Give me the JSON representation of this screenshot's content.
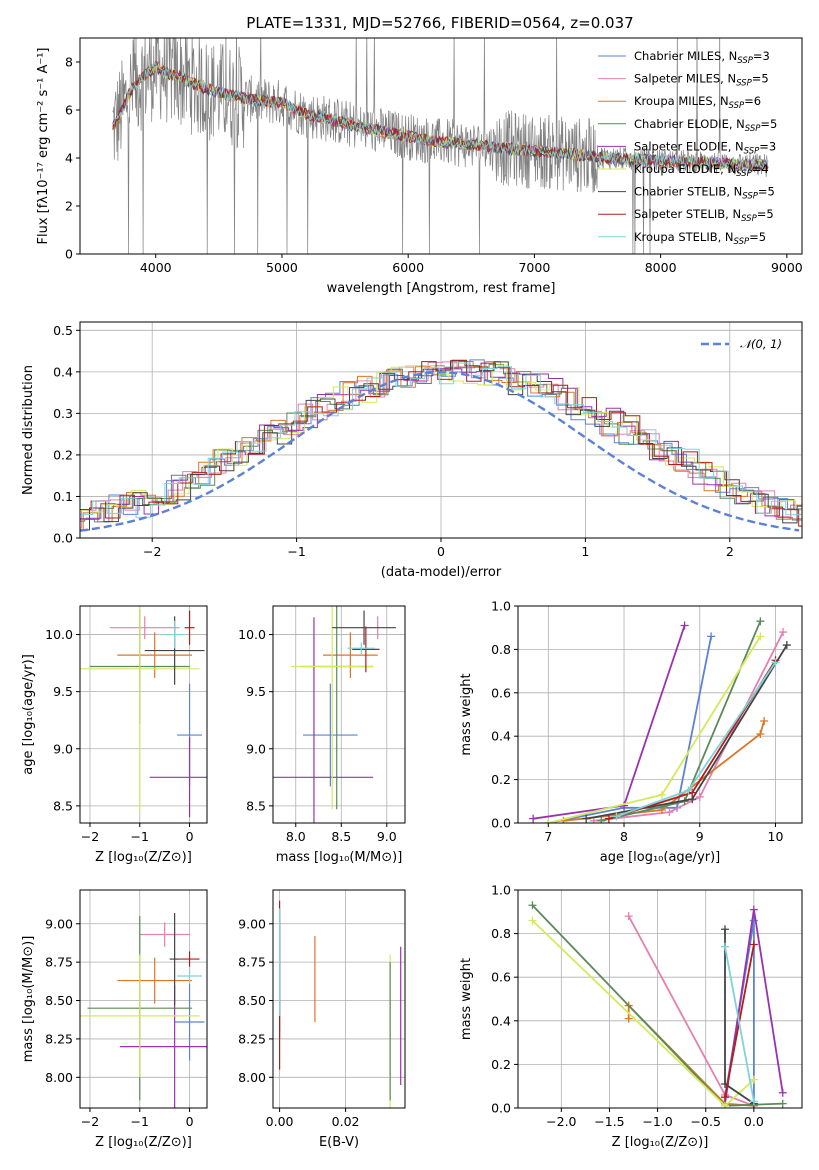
{
  "title": "PLATE=1331, MJD=52766, FIBERID=0564, z=0.037",
  "colors": [
    "#5b82d6",
    "#e57fb0",
    "#d9762a",
    "#5a8a5a",
    "#9a32b0",
    "#d4ea5a",
    "#444444",
    "#b01e1e",
    "#7ed3d8"
  ],
  "chart_data": [
    {
      "id": "spectrum",
      "type": "line",
      "xlabel": "wavelength [Angstrom, rest frame]",
      "ylabel": "Flux [fλ10⁻¹⁷ erg cm⁻² s⁻¹ A⁻¹]",
      "xlim": [
        3400,
        9120
      ],
      "ylim": [
        0,
        9
      ],
      "xticks": [
        4000,
        5000,
        6000,
        7000,
        8000,
        9000
      ],
      "yticks": [
        0,
        2,
        4,
        6,
        8
      ],
      "grid": false,
      "legend_position": "top-right",
      "observed_color": "#808080",
      "series": [
        {
          "name": "Chabrier MILES, N",
          "sub": "SSP",
          "suffix": "=3"
        },
        {
          "name": "Salpeter MILES, N",
          "sub": "SSP",
          "suffix": "=5"
        },
        {
          "name": "Kroupa MILES, N",
          "sub": "SSP",
          "suffix": "=6"
        },
        {
          "name": "Chabrier ELODIE, N",
          "sub": "SSP",
          "suffix": "=5"
        },
        {
          "name": "Salpeter ELODIE, N",
          "sub": "SSP",
          "suffix": "=3"
        },
        {
          "name": "Kroupa ELODIE, N",
          "sub": "SSP",
          "suffix": "=4"
        },
        {
          "name": "Chabrier STELIB, N",
          "sub": "SSP",
          "suffix": "=5"
        },
        {
          "name": "Salpeter STELIB, N",
          "sub": "SSP",
          "suffix": "=5"
        },
        {
          "name": "Kroupa STELIB, N",
          "sub": "SSP",
          "suffix": "=5"
        }
      ],
      "model_continuum": {
        "x": [
          3650,
          3700,
          3800,
          3900,
          4000,
          4100,
          4200,
          4300,
          4400,
          4600,
          4800,
          5000,
          5200,
          5400,
          5600,
          5800,
          6000,
          6200,
          6400,
          6600,
          6800,
          7000,
          7200,
          7400,
          7600,
          7800,
          8000,
          8200,
          8400,
          8600,
          8800
        ],
        "y": [
          5.2,
          5.6,
          6.8,
          7.4,
          7.8,
          7.5,
          7.4,
          7.1,
          6.9,
          6.6,
          6.4,
          6.3,
          5.8,
          5.6,
          5.3,
          5.1,
          4.9,
          4.7,
          4.6,
          4.5,
          4.4,
          4.3,
          4.2,
          4.1,
          4.0,
          3.95,
          3.9,
          3.85,
          3.8,
          3.75,
          3.7
        ]
      }
    },
    {
      "id": "residual_hist",
      "type": "line",
      "xlabel": "(data-model)/error",
      "ylabel": "Normed distribution",
      "xlim": [
        -2.5,
        2.5
      ],
      "ylim": [
        0,
        0.52
      ],
      "xticks": [
        -2,
        -1,
        0,
        1,
        2
      ],
      "xtick_labels": [
        "−2",
        "−1",
        "0",
        "1",
        "2"
      ],
      "yticks": [
        0.0,
        0.1,
        0.2,
        0.3,
        0.4,
        0.5
      ],
      "ytick_labels": [
        "0.0",
        "0.1",
        "0.2",
        "0.3",
        "0.4",
        "0.5"
      ],
      "grid": true,
      "legend_position": "top-right",
      "legend": "𝒩(0, 1)",
      "gaussian_color": "#5b82d6",
      "bin_width": 0.1,
      "hist_profile": [
        0.02,
        0.025,
        0.03,
        0.04,
        0.045,
        0.055,
        0.06,
        0.07,
        0.08,
        0.09,
        0.105,
        0.12,
        0.14,
        0.16,
        0.18,
        0.2,
        0.22,
        0.24,
        0.26,
        0.28,
        0.3,
        0.315,
        0.33,
        0.345,
        0.36,
        0.37,
        0.38,
        0.39,
        0.4,
        0.405,
        0.41,
        0.405,
        0.4,
        0.39,
        0.38,
        0.37,
        0.36,
        0.35,
        0.33,
        0.315,
        0.3,
        0.28,
        0.26,
        0.24,
        0.22,
        0.2,
        0.18,
        0.16,
        0.14,
        0.12,
        0.105,
        0.09,
        0.08,
        0.07,
        0.06,
        0.05,
        0.045,
        0.04,
        0.035,
        0.03
      ]
    },
    {
      "id": "age_vs_Z",
      "type": "scatter",
      "xlabel": "Z [log₁₀(Z/Z⊙)]",
      "ylabel": "age  [log₁₀(age/yr)]",
      "xlim": [
        -2.2,
        0.35
      ],
      "ylim": [
        8.35,
        10.25
      ],
      "xticks": [
        -2,
        -1,
        0
      ],
      "xtick_labels": [
        "−2",
        "−1",
        "0"
      ],
      "yticks": [
        8.5,
        9.0,
        9.5,
        10.0
      ],
      "ytick_labels": [
        "8.5",
        "9.0",
        "9.5",
        "10.0"
      ],
      "grid": true,
      "errorbars": [
        {
          "x": 0.0,
          "xerr": 0.25,
          "y": 9.12,
          "yerr": 0.45,
          "c": 0
        },
        {
          "x": -0.9,
          "xerr": 0.7,
          "y": 10.06,
          "yerr": 0.1,
          "c": 1
        },
        {
          "x": -0.7,
          "xerr": 0.75,
          "y": 9.82,
          "yerr": 0.2,
          "c": 2
        },
        {
          "x": -1.0,
          "xerr": 1.0,
          "y": 9.72,
          "yerr": 0.5,
          "c": 3
        },
        {
          "x": 0.0,
          "xerr": 0.8,
          "y": 8.75,
          "yerr": 0.35,
          "c": 4
        },
        {
          "x": -1.0,
          "xerr": 1.2,
          "y": 9.7,
          "yerr": 1.25,
          "c": 5
        },
        {
          "x": -0.3,
          "xerr": 0.6,
          "y": 9.86,
          "yerr": 0.3,
          "c": 6
        },
        {
          "x": 0.0,
          "xerr": 0.1,
          "y": 10.06,
          "yerr": 0.15,
          "c": 7
        },
        {
          "x": -0.3,
          "xerr": 0.2,
          "y": 10.0,
          "yerr": 0.12,
          "c": 8
        }
      ]
    },
    {
      "id": "age_vs_mass",
      "type": "scatter",
      "xlabel": "mass [log₁₀(M/M⊙)]",
      "xlim": [
        7.75,
        9.2
      ],
      "ylim": [
        8.35,
        10.25
      ],
      "xticks": [
        8.0,
        8.5,
        9.0
      ],
      "xtick_labels": [
        "8.0",
        "8.5",
        "9.0"
      ],
      "yticks": [
        8.5,
        9.0,
        9.5,
        10.0
      ],
      "ytick_labels": [
        "8.5",
        "9.0",
        "9.5",
        "10.0"
      ],
      "grid": true,
      "errorbars": [
        {
          "x": 8.38,
          "xerr": 0.3,
          "y": 9.12,
          "yerr": 0.45,
          "c": 0
        },
        {
          "x": 8.9,
          "xerr": 0.0,
          "y": 10.06,
          "yerr": 0.1,
          "c": 1
        },
        {
          "x": 8.6,
          "xerr": 0.3,
          "y": 9.82,
          "yerr": 0.2,
          "c": 2
        },
        {
          "x": 8.45,
          "xerr": 0.4,
          "y": 9.72,
          "yerr": 1.25,
          "c": 3
        },
        {
          "x": 8.2,
          "xerr": 0.65,
          "y": 8.75,
          "yerr": 1.4,
          "c": 4
        },
        {
          "x": 8.4,
          "xerr": 0.45,
          "y": 9.72,
          "yerr": 1.25,
          "c": 5
        },
        {
          "x": 8.75,
          "xerr": 0.35,
          "y": 10.06,
          "yerr": 0.15,
          "c": 6
        },
        {
          "x": 8.77,
          "xerr": 0.15,
          "y": 9.87,
          "yerr": 0.2,
          "c": 7
        },
        {
          "x": 8.72,
          "xerr": 0.15,
          "y": 9.88,
          "yerr": 0.05,
          "c": 8
        }
      ]
    },
    {
      "id": "mass_weight_vs_age",
      "type": "line",
      "xlabel": "age  [log₁₀(age/yr)]",
      "ylabel": "mass weight",
      "xlim": [
        6.6,
        10.35
      ],
      "ylim": [
        0,
        1
      ],
      "xticks": [
        7,
        8,
        9,
        10
      ],
      "yticks": [
        0.0,
        0.2,
        0.4,
        0.6,
        0.8,
        1.0
      ],
      "ytick_labels": [
        "0.0",
        "0.2",
        "0.4",
        "0.6",
        "0.8",
        "1.0"
      ],
      "grid": true,
      "series": [
        {
          "c": 0,
          "x": [
            7.0,
            8.0,
            8.7,
            9.15
          ],
          "y": [
            0.0,
            0.07,
            0.07,
            0.86
          ]
        },
        {
          "c": 1,
          "x": [
            7.6,
            8.6,
            9.0,
            10.1
          ],
          "y": [
            0.01,
            0.05,
            0.12,
            0.88
          ]
        },
        {
          "c": 2,
          "x": [
            7.2,
            8.5,
            9.8,
            9.85
          ],
          "y": [
            0.01,
            0.06,
            0.41,
            0.47
          ]
        },
        {
          "c": 3,
          "x": [
            7.7,
            8.8,
            9.8
          ],
          "y": [
            0.01,
            0.1,
            0.93
          ]
        },
        {
          "c": 4,
          "x": [
            6.8,
            8.0,
            8.8
          ],
          "y": [
            0.02,
            0.08,
            0.91
          ]
        },
        {
          "c": 5,
          "x": [
            7.0,
            8.5,
            9.8
          ],
          "y": [
            0.0,
            0.13,
            0.86
          ]
        },
        {
          "c": 6,
          "x": [
            7.5,
            8.9,
            10.15
          ],
          "y": [
            0.02,
            0.11,
            0.82
          ]
        },
        {
          "c": 7,
          "x": [
            7.8,
            8.9,
            10.0
          ],
          "y": [
            0.02,
            0.14,
            0.75
          ]
        },
        {
          "c": 8,
          "x": [
            7.9,
            8.85,
            10.0
          ],
          "y": [
            0.03,
            0.15,
            0.74
          ]
        }
      ]
    },
    {
      "id": "mass_vs_Z",
      "type": "scatter",
      "xlabel": "Z [log₁₀(Z/Z⊙)]",
      "ylabel": "mass [log₁₀(M/M⊙)]",
      "xlim": [
        -2.2,
        0.35
      ],
      "ylim": [
        7.8,
        9.22
      ],
      "xticks": [
        -2,
        -1,
        0
      ],
      "xtick_labels": [
        "−2",
        "−1",
        "0"
      ],
      "yticks": [
        8.0,
        8.25,
        8.5,
        8.75,
        9.0
      ],
      "ytick_labels": [
        "8.00",
        "8.25",
        "8.50",
        "8.75",
        "9.00"
      ],
      "grid": true,
      "errorbars": [
        {
          "x": 0.0,
          "xerr": 0.3,
          "y": 8.36,
          "yerr": 0.25,
          "c": 0
        },
        {
          "x": -0.5,
          "xerr": 0.5,
          "y": 8.93,
          "yerr": 0.08,
          "c": 1
        },
        {
          "x": -0.7,
          "xerr": 0.75,
          "y": 8.63,
          "yerr": 0.15,
          "c": 2
        },
        {
          "x": -1.0,
          "xerr": 1.05,
          "y": 8.45,
          "yerr": 0.6,
          "c": 3
        },
        {
          "x": -0.3,
          "xerr": 1.1,
          "y": 8.2,
          "yerr": 0.4,
          "c": 4
        },
        {
          "x": -1.0,
          "xerr": 1.2,
          "y": 8.4,
          "yerr": 0.4,
          "c": 5
        },
        {
          "x": -0.3,
          "xerr": 0.1,
          "y": 8.77,
          "yerr": 0.3,
          "c": 6
        },
        {
          "x": 0.0,
          "xerr": 0.2,
          "y": 8.77,
          "yerr": 0.05,
          "c": 7
        },
        {
          "x": 0.0,
          "xerr": 0.25,
          "y": 8.66,
          "yerr": 0.05,
          "c": 8
        }
      ]
    },
    {
      "id": "mass_vs_EBV",
      "type": "scatter",
      "xlabel": "E(B-V)",
      "xlim": [
        -0.002,
        0.038
      ],
      "ylim": [
        7.8,
        9.22
      ],
      "xticks": [
        0.0,
        0.02
      ],
      "xtick_labels": [
        "0.00",
        "0.02"
      ],
      "yticks": [
        8.0,
        8.25,
        8.5,
        8.75,
        9.0
      ],
      "ytick_labels": [
        "8.00",
        "8.25",
        "8.50",
        "8.75",
        "9.00"
      ],
      "grid": true,
      "errorbars": [
        {
          "x": 0.0,
          "xerr": 0,
          "y": 8.6,
          "yerr": 0.35,
          "c": 0
        },
        {
          "x": 0.0,
          "xerr": 0,
          "y": 8.9,
          "yerr": 0.1,
          "c": 1
        },
        {
          "x": 0.0107,
          "xerr": 0,
          "y": 8.64,
          "yerr": 0.28,
          "c": 2
        },
        {
          "x": 0.0,
          "xerr": 0,
          "y": 8.7,
          "yerr": 0.4,
          "c": 3
        },
        {
          "x": 0.0367,
          "xerr": 0,
          "y": 8.4,
          "yerr": 0.45,
          "c": 4
        },
        {
          "x": 0.0335,
          "xerr": 0,
          "y": 8.3,
          "yerr": 0.5,
          "c": 5
        },
        {
          "x": 0.0335,
          "xerr": 0,
          "y": 8.3,
          "yerr": 0.45,
          "c": 3
        },
        {
          "x": 0.0,
          "xerr": 0,
          "y": 8.6,
          "yerr": 0.55,
          "c": 7
        },
        {
          "x": 0.0,
          "xerr": 0,
          "y": 8.75,
          "yerr": 0.35,
          "c": 8
        }
      ]
    },
    {
      "id": "mass_weight_vs_Z",
      "type": "line",
      "xlabel": "Z [log₁₀(Z/Z⊙)]",
      "ylabel": "mass weight",
      "xlim": [
        -2.45,
        0.5
      ],
      "ylim": [
        0,
        1
      ],
      "xticks": [
        -2.0,
        -1.5,
        -1.0,
        -0.5,
        0.0
      ],
      "xtick_labels": [
        "−2.0",
        "−1.5",
        "−1.0",
        "−0.5",
        "0.0"
      ],
      "yticks": [
        0.0,
        0.2,
        0.4,
        0.6,
        0.8,
        1.0
      ],
      "ytick_labels": [
        "0.0",
        "0.2",
        "0.4",
        "0.6",
        "0.8",
        "1.0"
      ],
      "grid": true,
      "series": [
        {
          "c": 0,
          "x": [
            -0.3,
            0.0,
            0.0
          ],
          "y": [
            0.05,
            0.86,
            0.02
          ]
        },
        {
          "c": 1,
          "x": [
            -1.3,
            -0.3,
            0.0
          ],
          "y": [
            0.88,
            0.06,
            0.01
          ]
        },
        {
          "c": 2,
          "x": [
            -1.3,
            -1.3,
            -0.3,
            0.0
          ],
          "y": [
            0.41,
            0.47,
            0.02,
            0.01
          ]
        },
        {
          "c": 3,
          "x": [
            -2.3,
            -0.3,
            0.3
          ],
          "y": [
            0.93,
            0.01,
            0.02
          ]
        },
        {
          "c": 4,
          "x": [
            -0.3,
            0.0,
            0.3
          ],
          "y": [
            0.02,
            0.91,
            0.07
          ]
        },
        {
          "c": 5,
          "x": [
            -2.3,
            -0.3,
            0.0
          ],
          "y": [
            0.86,
            0.01,
            0.13
          ]
        },
        {
          "c": 6,
          "x": [
            -0.3,
            -0.3,
            0.0
          ],
          "y": [
            0.82,
            0.11,
            0.02
          ]
        },
        {
          "c": 7,
          "x": [
            -0.3,
            0.0
          ],
          "y": [
            0.05,
            0.75
          ]
        },
        {
          "c": 8,
          "x": [
            -0.3,
            0.0
          ],
          "y": [
            0.74,
            0.03
          ]
        }
      ]
    }
  ]
}
